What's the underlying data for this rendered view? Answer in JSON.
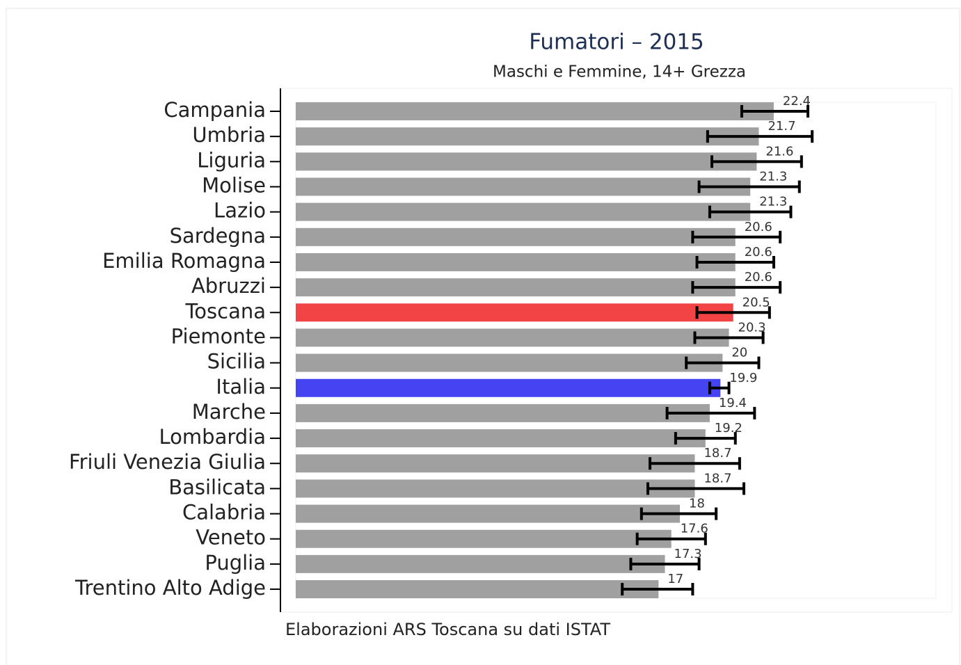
{
  "chart_data": {
    "type": "bar",
    "orientation": "horizontal",
    "title": "Fumatori – 2015",
    "subtitle": "Maschi e Femmine, 14+ Grezza",
    "source": "Elaborazioni ARS Toscana su dati ISTAT",
    "categories": [
      "Campania",
      "Umbria",
      "Liguria",
      "Molise",
      "Lazio",
      "Sardegna",
      "Emilia Romagna",
      "Abruzzi",
      "Toscana",
      "Piemonte",
      "Sicilia",
      "Italia",
      "Marche",
      "Lombardia",
      "Friuli Venezia Giulia",
      "Basilicata",
      "Calabria",
      "Veneto",
      "Puglia",
      "Trentino Alto Adige"
    ],
    "values": [
      22.4,
      21.7,
      21.6,
      21.3,
      21.3,
      20.6,
      20.6,
      20.6,
      20.5,
      20.3,
      20,
      19.9,
      19.4,
      19.2,
      18.7,
      18.7,
      18,
      17.6,
      17.3,
      17
    ],
    "ci_low": [
      20.9,
      19.3,
      19.5,
      18.9,
      19.4,
      18.6,
      18.8,
      18.6,
      18.8,
      18.7,
      18.3,
      19.4,
      17.4,
      17.8,
      16.6,
      16.5,
      16.2,
      16.0,
      15.7,
      15.3
    ],
    "ci_high": [
      24.0,
      24.2,
      23.7,
      23.6,
      23.2,
      22.7,
      22.4,
      22.7,
      22.2,
      21.9,
      21.7,
      20.3,
      21.5,
      20.6,
      20.8,
      21.0,
      19.7,
      19.2,
      18.9,
      18.6
    ],
    "colors": [
      "#a0a0a0",
      "#a0a0a0",
      "#a0a0a0",
      "#a0a0a0",
      "#a0a0a0",
      "#a0a0a0",
      "#a0a0a0",
      "#a0a0a0",
      "#f24444",
      "#a0a0a0",
      "#a0a0a0",
      "#4444f2",
      "#a0a0a0",
      "#a0a0a0",
      "#a0a0a0",
      "#a0a0a0",
      "#a0a0a0",
      "#a0a0a0",
      "#a0a0a0",
      "#a0a0a0"
    ],
    "xlim": [
      0,
      30
    ]
  }
}
